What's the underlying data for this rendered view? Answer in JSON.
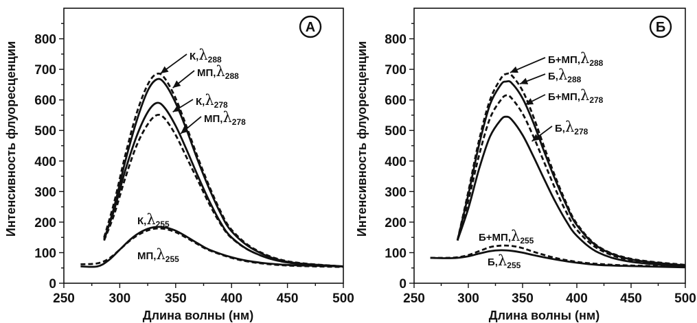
{
  "chart_data": [
    {
      "type": "line",
      "panel_label": "А",
      "xlabel": "Длина волны (нм)",
      "ylabel": "Интенсивность флуоресценции",
      "xlim": [
        250,
        500
      ],
      "ylim": [
        0,
        900
      ],
      "x_ticks": [
        250,
        300,
        350,
        400,
        450,
        500
      ],
      "y_ticks": [
        0,
        100,
        200,
        300,
        400,
        500,
        600,
        700,
        800
      ],
      "series": [
        {
          "name": "К,λ288",
          "prefix": "К,",
          "sub": "288",
          "style": "solid",
          "x": [
            286,
            295,
            305,
            315,
            325,
            333,
            340,
            350,
            360,
            370,
            380,
            390,
            400,
            420,
            450,
            500
          ],
          "y": [
            140,
            250,
            400,
            530,
            630,
            667,
            655,
            590,
            500,
            400,
            310,
            230,
            170,
            110,
            70,
            55
          ]
        },
        {
          "name": "МП,λ288",
          "prefix": "МП,",
          "sub": "288",
          "style": "dashed",
          "x": [
            286,
            295,
            305,
            315,
            325,
            333,
            340,
            350,
            360,
            370,
            380,
            390,
            400,
            420,
            450,
            500
          ],
          "y": [
            150,
            265,
            420,
            555,
            650,
            685,
            672,
            605,
            510,
            410,
            318,
            237,
            175,
            113,
            72,
            55
          ]
        },
        {
          "name": "К,λ278",
          "prefix": "К,",
          "sub": "278",
          "style": "solid",
          "x": [
            286,
            295,
            305,
            315,
            325,
            333,
            340,
            350,
            360,
            370,
            380,
            390,
            400,
            420,
            450,
            500
          ],
          "y": [
            145,
            240,
            370,
            480,
            560,
            590,
            575,
            515,
            435,
            350,
            270,
            200,
            150,
            100,
            68,
            55
          ]
        },
        {
          "name": "МП,λ278",
          "prefix": "МП,",
          "sub": "278",
          "style": "dashed",
          "x": [
            286,
            295,
            305,
            315,
            325,
            333,
            340,
            350,
            360,
            370,
            380,
            390,
            400,
            420,
            450,
            500
          ],
          "y": [
            140,
            225,
            345,
            450,
            520,
            550,
            540,
            485,
            410,
            335,
            260,
            195,
            148,
            100,
            68,
            55
          ]
        },
        {
          "name": "К,λ255",
          "prefix": "К,",
          "sub": "255",
          "style": "solid",
          "x": [
            265,
            280,
            290,
            300,
            310,
            320,
            330,
            340,
            350,
            360,
            370,
            380,
            400,
            420,
            450,
            500
          ],
          "y": [
            55,
            55,
            75,
            110,
            145,
            170,
            183,
            183,
            172,
            152,
            130,
            110,
            85,
            70,
            60,
            55
          ]
        },
        {
          "name": "МП,λ255",
          "prefix": "МП,",
          "sub": "255",
          "style": "dashed",
          "x": [
            265,
            280,
            290,
            300,
            310,
            320,
            330,
            340,
            350,
            360,
            370,
            380,
            400,
            420,
            450,
            500
          ],
          "y": [
            62,
            65,
            80,
            110,
            142,
            165,
            178,
            178,
            167,
            148,
            127,
            108,
            83,
            68,
            58,
            53
          ]
        }
      ]
    },
    {
      "type": "line",
      "panel_label": "Б",
      "xlabel": "Длина волны (нм)",
      "ylabel": "Интенсивность флуоресценции",
      "xlim": [
        250,
        500
      ],
      "ylim": [
        0,
        900
      ],
      "x_ticks": [
        250,
        300,
        350,
        400,
        450,
        500
      ],
      "y_ticks": [
        0,
        100,
        200,
        300,
        400,
        500,
        600,
        700,
        800
      ],
      "series": [
        {
          "name": "Б+МП,λ288",
          "prefix": "Б+МП,",
          "sub": "288",
          "style": "dashed",
          "x": [
            290,
            300,
            310,
            320,
            330,
            335,
            340,
            350,
            360,
            370,
            380,
            390,
            400,
            420,
            450,
            500
          ],
          "y": [
            140,
            300,
            470,
            600,
            670,
            685,
            680,
            630,
            545,
            445,
            350,
            265,
            195,
            120,
            80,
            60
          ]
        },
        {
          "name": "Б,λ288",
          "prefix": "Б,",
          "sub": "288",
          "style": "solid",
          "x": [
            290,
            300,
            310,
            320,
            330,
            335,
            340,
            350,
            360,
            370,
            380,
            390,
            400,
            420,
            450,
            500
          ],
          "y": [
            140,
            290,
            455,
            585,
            650,
            660,
            655,
            605,
            525,
            430,
            340,
            258,
            190,
            118,
            78,
            58
          ]
        },
        {
          "name": "Б+МП,λ278",
          "prefix": "Б+МП,",
          "sub": "278",
          "style": "dashed",
          "x": [
            290,
            300,
            310,
            320,
            330,
            335,
            340,
            350,
            360,
            370,
            380,
            390,
            400,
            420,
            450,
            500
          ],
          "y": [
            140,
            270,
            420,
            540,
            600,
            615,
            605,
            555,
            480,
            395,
            310,
            235,
            175,
            112,
            75,
            57
          ]
        },
        {
          "name": "Б,λ278",
          "prefix": "Б,",
          "sub": "278",
          "style": "solid",
          "x": [
            290,
            300,
            310,
            320,
            330,
            335,
            340,
            350,
            360,
            370,
            380,
            390,
            400,
            420,
            450,
            500
          ],
          "y": [
            140,
            245,
            375,
            480,
            535,
            545,
            535,
            485,
            415,
            340,
            268,
            205,
            155,
            100,
            70,
            55
          ]
        },
        {
          "name": "Б+МП,λ255",
          "prefix": "Б+МП,",
          "sub": "255",
          "style": "dashed",
          "x": [
            265,
            280,
            290,
            300,
            310,
            320,
            330,
            340,
            350,
            360,
            380,
            400,
            420,
            450,
            500
          ],
          "y": [
            83,
            83,
            85,
            92,
            105,
            118,
            123,
            122,
            115,
            103,
            83,
            70,
            63,
            58,
            55
          ]
        },
        {
          "name": "Б,λ255",
          "prefix": "Б,",
          "sub": "255",
          "style": "solid",
          "x": [
            265,
            280,
            290,
            300,
            310,
            320,
            330,
            340,
            350,
            360,
            380,
            400,
            420,
            450,
            500
          ],
          "y": [
            83,
            82,
            83,
            88,
            97,
            105,
            108,
            106,
            100,
            92,
            78,
            67,
            60,
            56,
            52
          ]
        }
      ]
    }
  ]
}
